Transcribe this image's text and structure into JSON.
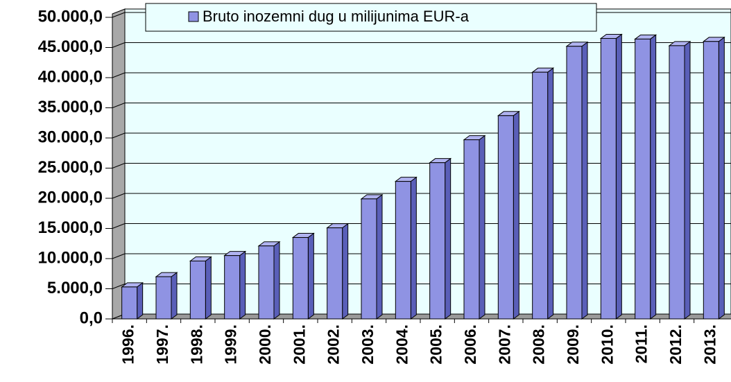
{
  "chart_data": {
    "type": "bar",
    "legend": "Bruto inozemni dug u milijunima EUR-a",
    "categories": [
      "1996.",
      "1997.",
      "1998.",
      "1999.",
      "2000.",
      "2001.",
      "2002.",
      "2003.",
      "2004.",
      "2005.",
      "2006.",
      "2007.",
      "2008.",
      "2009.",
      "2010.",
      "2011.",
      "2012.",
      "2013."
    ],
    "values": [
      5300,
      7000,
      9600,
      10500,
      12100,
      13500,
      15100,
      19900,
      22800,
      25900,
      29700,
      33700,
      40900,
      45200,
      46500,
      46400,
      45300,
      46000
    ],
    "color": "#8f93e3",
    "ylim": [
      0,
      50000
    ],
    "yticks": [
      {
        "value": 0,
        "label": "0,0"
      },
      {
        "value": 5000,
        "label": "5.000,0"
      },
      {
        "value": 10000,
        "label": "10.000,0"
      },
      {
        "value": 15000,
        "label": "15.000,0"
      },
      {
        "value": 20000,
        "label": "20.000,0"
      },
      {
        "value": 25000,
        "label": "25.000,0"
      },
      {
        "value": 30000,
        "label": "30.000,0"
      },
      {
        "value": 35000,
        "label": "35.000,0"
      },
      {
        "value": 40000,
        "label": "40.000,0"
      },
      {
        "value": 45000,
        "label": "45.000,0"
      },
      {
        "value": 50000,
        "label": "50.000,0"
      }
    ],
    "grid": true
  }
}
